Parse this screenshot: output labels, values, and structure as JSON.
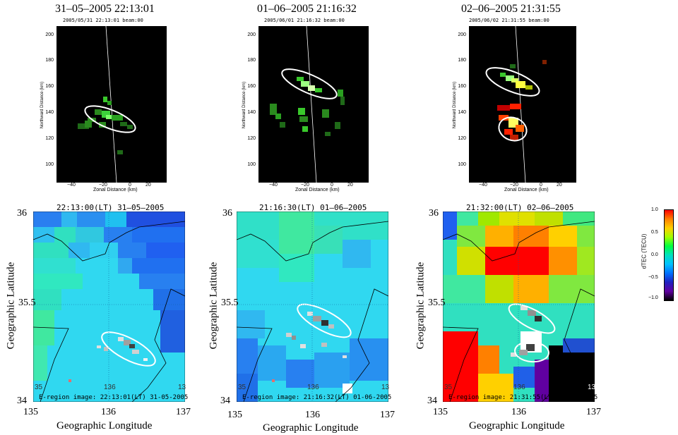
{
  "radar_panels": [
    {
      "heading": "31–05–2005 22:13:01",
      "subtitle": "2005/05/31 22:13:01 beam:00",
      "y_ticks": [
        "200",
        "180",
        "160",
        "140",
        "120",
        "100"
      ],
      "x_ticks": [
        "−40",
        "−20",
        "0",
        "20"
      ],
      "x_label": "Zonal Distance (km)",
      "y_label": "Northward Distance (km)"
    },
    {
      "heading": "01–06–2005 21:16:32",
      "subtitle": "2005/06/01 21:16:32 beam:00",
      "y_ticks": [
        "200",
        "180",
        "160",
        "140",
        "120",
        "100"
      ],
      "x_ticks": [
        "−40",
        "−20",
        "0",
        "20"
      ],
      "x_label": "Zonal Distance (km)",
      "y_label": "Northward Distance (km)"
    },
    {
      "heading": "02–06–2005 21:31:55",
      "subtitle": "2005/06/02 21:31:55 beam:00",
      "y_ticks": [
        "200",
        "180",
        "160",
        "140",
        "120",
        "100"
      ],
      "x_ticks": [
        "−40",
        "−20",
        "0",
        "20"
      ],
      "x_label": "Zonal Distance (km)",
      "y_label": "Northward Distance (km)"
    }
  ],
  "map_panels": [
    {
      "title": "22:13:00(LT)  31–05–2005",
      "footer": "E-region image: 22:13:01(LT) 31-05-2005",
      "lat_ticks": [
        "36",
        "35.5",
        "34"
      ],
      "lon_ticks": [
        "135",
        "136",
        "137"
      ],
      "inner_labels": [
        "35",
        "136",
        "13"
      ],
      "x_label": "Geographic Longitude",
      "y_label": "Geographic Latitude"
    },
    {
      "title": "21:16:30(LT)  01–06–2005",
      "footer": "E-region image: 21:16:32(LT) 01-06-2005",
      "lat_ticks": [
        "36",
        "35.5",
        "34"
      ],
      "lon_ticks": [
        "135",
        "136",
        "137"
      ],
      "inner_labels": [
        "35",
        "136",
        "13"
      ],
      "x_label": "Geographic Longitude",
      "y_label": "Geographic Latitude"
    },
    {
      "title": "21:32:00(LT)  02–06–2005",
      "footer": "E-region image: 21:31:55(LT) 02-06-2005",
      "lat_ticks": [
        "36",
        "35.5",
        "34"
      ],
      "lon_ticks": [
        "135",
        "136",
        "137"
      ],
      "inner_labels": [
        "35",
        "136",
        "13"
      ],
      "x_label": "Geographic Longitude",
      "y_label": "Geographic Latitude"
    }
  ],
  "colorbar": {
    "label": "dTEC (TECU)",
    "ticks": [
      "1.0",
      "0.5",
      "0.0",
      "−0.5",
      "−1.0"
    ],
    "colors": [
      "#ff0000",
      "#ff8000",
      "#ffd000",
      "#a0ff00",
      "#00ff40",
      "#00e0c0",
      "#00c0ff",
      "#0070ff",
      "#2020c0",
      "#6000a0",
      "#000000"
    ]
  }
}
